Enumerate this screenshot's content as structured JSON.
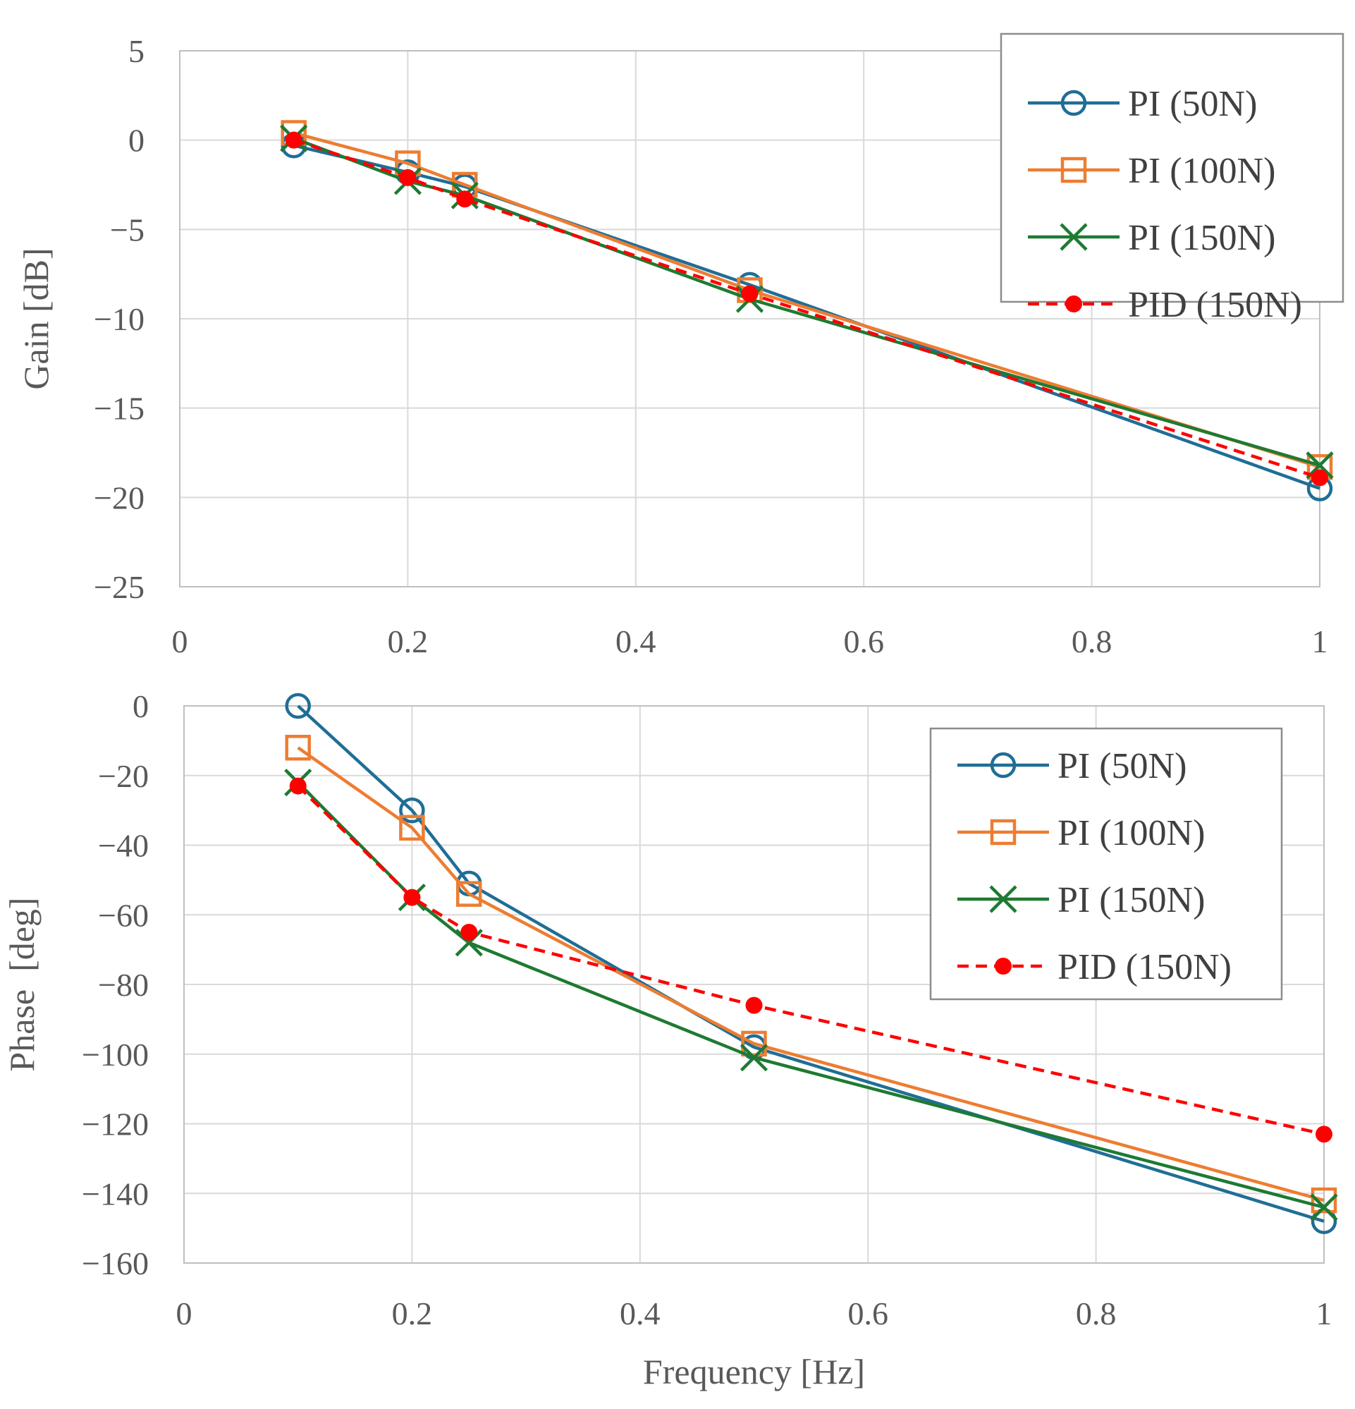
{
  "chart_data": [
    {
      "type": "line",
      "title": "",
      "xlabel": "",
      "ylabel": "Gain [dB]",
      "xlim": [
        0,
        1
      ],
      "ylim": [
        -25,
        5
      ],
      "xticks": [
        0,
        0.2,
        0.4,
        0.6,
        0.8,
        1
      ],
      "xtick_labels": [
        "0",
        "0.2",
        "0.4",
        "0.6",
        "0.8",
        "1"
      ],
      "yticks": [
        5,
        0,
        -5,
        -10,
        -15,
        -20,
        -25
      ],
      "ytick_labels": [
        "5",
        "0",
        "−5",
        "−10",
        "−15",
        "−20",
        "−25"
      ],
      "grid": true,
      "legend_position": "top-right",
      "series": [
        {
          "name": "PI (50N)",
          "color": "#1f6e96",
          "marker": "circle",
          "dash": "solid",
          "x": [
            0.1,
            0.2,
            0.25,
            0.5,
            1
          ],
          "y": [
            -0.3,
            -1.8,
            -2.6,
            -8.1,
            -19.5
          ]
        },
        {
          "name": "PI (100N)",
          "color": "#ed7d31",
          "marker": "square",
          "dash": "solid",
          "x": [
            0.1,
            0.2,
            0.25,
            0.5,
            1
          ],
          "y": [
            0.4,
            -1.3,
            -2.5,
            -8.4,
            -18.3
          ]
        },
        {
          "name": "PI (150N)",
          "color": "#1e7a32",
          "marker": "x",
          "dash": "solid",
          "x": [
            0.1,
            0.2,
            0.25,
            0.5,
            1
          ],
          "y": [
            0.1,
            -2.3,
            -3.1,
            -8.9,
            -18.2
          ]
        },
        {
          "name": "PID (150N)",
          "color": "#ff0000",
          "marker": "dot",
          "dash": "dashed",
          "x": [
            0.1,
            0.2,
            0.25,
            0.5,
            1
          ],
          "y": [
            0.0,
            -2.1,
            -3.3,
            -8.6,
            -18.9
          ]
        }
      ]
    },
    {
      "type": "line",
      "title": "",
      "xlabel": "Frequency [Hz]",
      "ylabel": "Phase  [deg]",
      "xlim": [
        0,
        1
      ],
      "ylim": [
        -160,
        0
      ],
      "xticks": [
        0,
        0.2,
        0.4,
        0.6,
        0.8,
        1
      ],
      "xtick_labels": [
        "0",
        "0.2",
        "0.4",
        "0.6",
        "0.8",
        "1"
      ],
      "yticks": [
        0,
        -20,
        -40,
        -60,
        -80,
        -100,
        -120,
        -140,
        -160
      ],
      "ytick_labels": [
        "0",
        "−20",
        "−40",
        "−60",
        "−80",
        "−100",
        "−120",
        "−140",
        "−160"
      ],
      "grid": true,
      "legend_position": "top-right",
      "series": [
        {
          "name": "PI (50N)",
          "color": "#1f6e96",
          "marker": "circle",
          "dash": "solid",
          "x": [
            0.1,
            0.2,
            0.25,
            0.5,
            1
          ],
          "y": [
            0,
            -30,
            -51,
            -98,
            -148
          ]
        },
        {
          "name": "PI (100N)",
          "color": "#ed7d31",
          "marker": "square",
          "dash": "solid",
          "x": [
            0.1,
            0.2,
            0.25,
            0.5,
            1
          ],
          "y": [
            -12,
            -35,
            -54,
            -97,
            -142
          ]
        },
        {
          "name": "PI (150N)",
          "color": "#1e7a32",
          "marker": "x",
          "dash": "solid",
          "x": [
            0.1,
            0.2,
            0.25,
            0.5,
            1
          ],
          "y": [
            -22,
            -55,
            -68,
            -101,
            -144
          ]
        },
        {
          "name": "PID (150N)",
          "color": "#ff0000",
          "marker": "dot",
          "dash": "dashed",
          "x": [
            0.1,
            0.2,
            0.25,
            0.5,
            1
          ],
          "y": [
            -23,
            -55,
            -65,
            -86,
            -123
          ]
        }
      ]
    }
  ]
}
